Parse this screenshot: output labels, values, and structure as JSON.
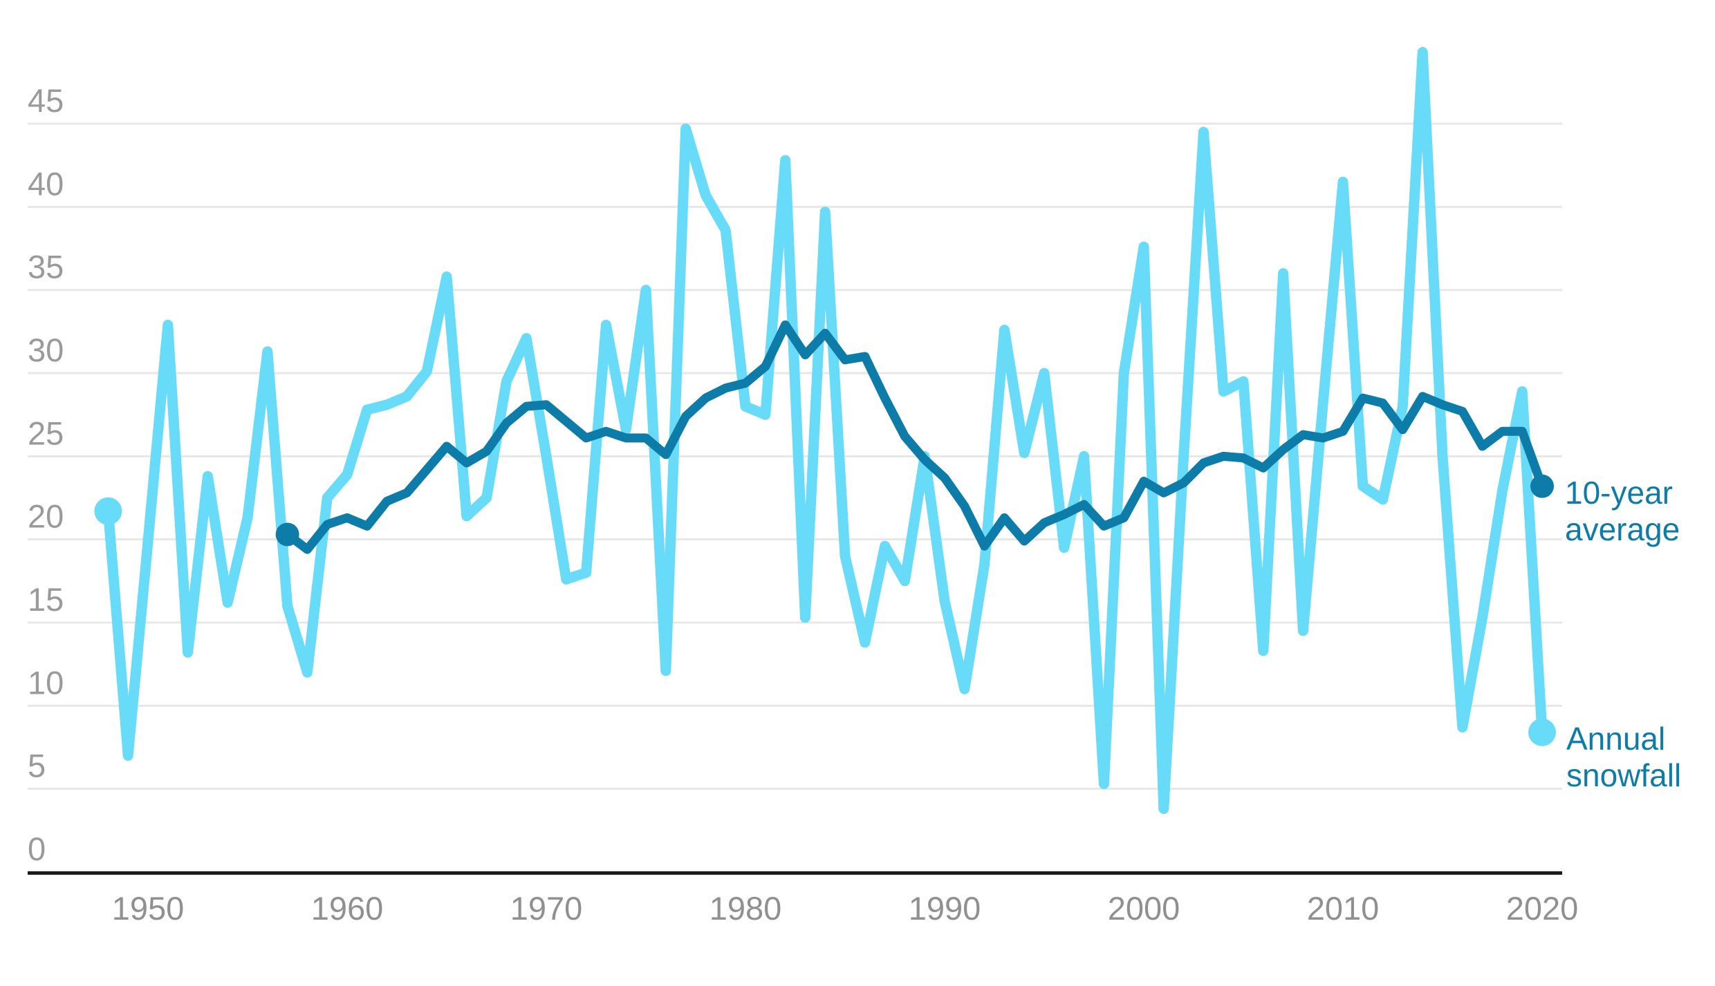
{
  "chart_data": {
    "type": "line",
    "title": "",
    "grid": true,
    "legend_position": "right",
    "x_axis": {
      "ticks": [
        1950,
        1960,
        1970,
        1980,
        1990,
        2000,
        2010,
        2020
      ]
    },
    "y_axis": {
      "ticks": [
        0,
        5,
        10,
        15,
        20,
        25,
        30,
        35,
        40,
        45
      ],
      "range": [
        0,
        50.5
      ]
    },
    "years": {
      "start": 1948,
      "end": 2020
    },
    "series": [
      {
        "name": "Annual snowfall",
        "color": "#68dbf8",
        "start_year": 1948,
        "end_year": 2020,
        "stroke_width": 15,
        "endpoint_dots": true,
        "values": [
          21.7,
          7,
          19.9,
          32.9,
          13.2,
          23.8,
          16.2,
          21.3,
          31.3,
          16,
          12,
          22.5,
          23.9,
          27.8,
          28.1,
          28.6,
          30.1,
          35.8,
          21.4,
          22.5,
          29.5,
          32.1,
          25,
          17.6,
          18,
          32.9,
          26.6,
          35,
          12.1,
          44.7,
          40.7,
          38.6,
          28,
          27.5,
          42.8,
          15.3,
          39.7,
          19,
          13.8,
          19.6,
          17.5,
          25,
          16.3,
          11,
          18.5,
          32.6,
          25.2,
          30,
          19.5,
          25,
          5.3,
          30,
          37.6,
          3.8,
          25,
          44.5,
          28.9,
          29.5,
          13.3,
          36,
          14.5,
          28.2,
          41.5,
          23.2,
          22.4,
          28,
          49.3,
          25,
          8.7,
          15.3,
          22.9,
          28.9,
          8.4
        ]
      },
      {
        "name": "10-year average",
        "color": "#0e7ca8",
        "start_year": 1957,
        "end_year": 2020,
        "stroke_width": 13,
        "endpoint_dots": true,
        "values": [
          20.3,
          19.4,
          20.9,
          21.3,
          20.8,
          22.3,
          22.8,
          24.2,
          25.6,
          24.6,
          25.3,
          27,
          28,
          28.1,
          27.1,
          26.1,
          26.5,
          26.1,
          26.1,
          25.1,
          27.4,
          28.5,
          29.1,
          29.4,
          30.4,
          32.9,
          31.1,
          32.4,
          30.8,
          31,
          28.5,
          26.2,
          24.8,
          23.7,
          22,
          19.6,
          21.3,
          19.9,
          21,
          21.5,
          22.1,
          20.8,
          21.3,
          23.5,
          22.8,
          23.4,
          24.6,
          25,
          24.9,
          24.3,
          25.4,
          26.3,
          26.1,
          26.5,
          28.5,
          28.2,
          26.6,
          28.6,
          28.1,
          27.7,
          25.6,
          26.5,
          26.5,
          23.2
        ]
      }
    ],
    "legend": {
      "average": [
        "10-year",
        "average"
      ],
      "annual": [
        "Annual",
        "snowfall"
      ]
    },
    "colors": {
      "annual_line": "#68dbf8",
      "average_line": "#0e7ca8",
      "gridline": "#e7e7e7",
      "axis_line": "#1b1b1b",
      "y_label": "#9a9a9a",
      "x_label": "#909090",
      "legend_text": "#0e7ca8",
      "background": "#ffffff"
    }
  }
}
